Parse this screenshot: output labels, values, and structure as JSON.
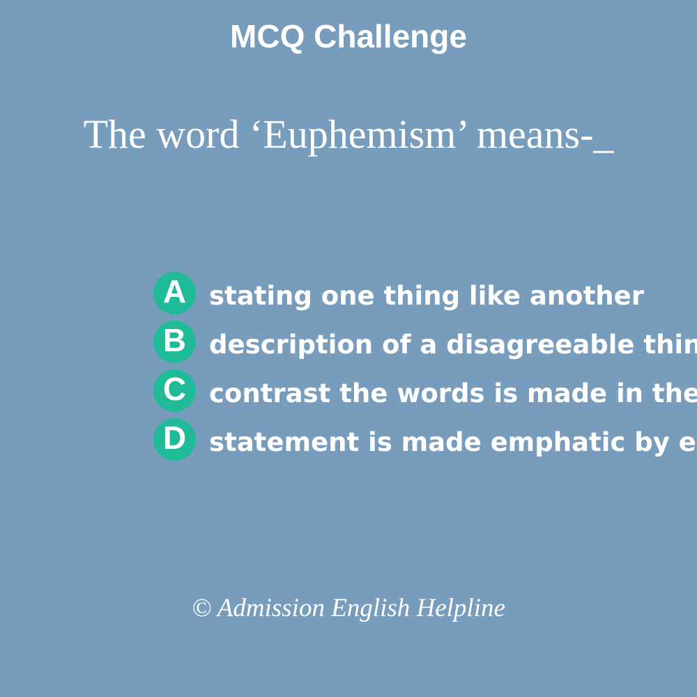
{
  "header": {
    "title": "MCQ Challenge"
  },
  "question": {
    "text": "The word ‘Euphemism’ means-_"
  },
  "options": [
    {
      "letter": "A",
      "text": "stating one thing like another"
    },
    {
      "letter": "B",
      "text": "description of a disagreeable thing"
    },
    {
      "letter": "C",
      "text": "contrast the words is made in the"
    },
    {
      "letter": "D",
      "text": "statement is made emphatic by exaggeration"
    }
  ],
  "footer": {
    "copyright": "© Admission English Helpline"
  },
  "colors": {
    "background": "#789cbc",
    "badge": "#1fba98",
    "text": "#ffffff"
  }
}
